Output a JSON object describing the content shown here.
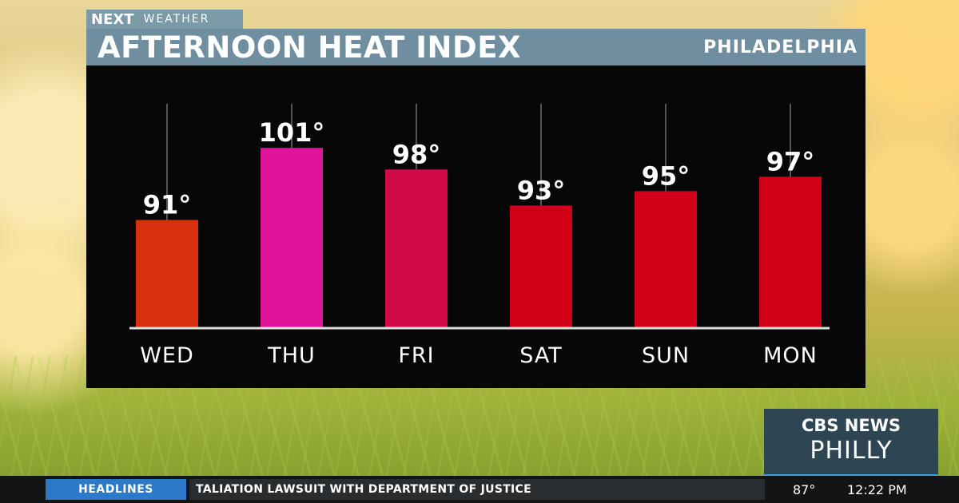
{
  "branding": {
    "next": "NEXT",
    "weather": "WEATHER"
  },
  "header": {
    "title": "AFTERNOON HEAT INDEX",
    "location": "PHILADELPHIA"
  },
  "chart_data": {
    "type": "bar",
    "title": "AFTERNOON HEAT INDEX",
    "categories": [
      "WED",
      "THU",
      "FRI",
      "SAT",
      "SUN",
      "MON"
    ],
    "values": [
      91,
      101,
      98,
      93,
      95,
      97
    ],
    "value_labels": [
      "91°",
      "101°",
      "98°",
      "93°",
      "95°",
      "97°"
    ],
    "bar_colors": [
      "#d8300f",
      "#e0139a",
      "#d10a4a",
      "#d10018",
      "#d10018",
      "#d10018"
    ],
    "ylim": [
      76,
      106
    ],
    "grid": false,
    "legend": "none"
  },
  "logo": {
    "line1": "CBS NEWS",
    "line2": "PHILLY"
  },
  "ticker": {
    "label": "HEADLINES",
    "text": "TALIATION LAWSUIT WITH DEPARTMENT OF JUSTICE",
    "temperature": "87°",
    "time": "12:22 PM"
  },
  "colors": {
    "title_bar": "#6f8fa0",
    "panel_bg": "#070707",
    "headlines_blue": "#2b79c8"
  }
}
